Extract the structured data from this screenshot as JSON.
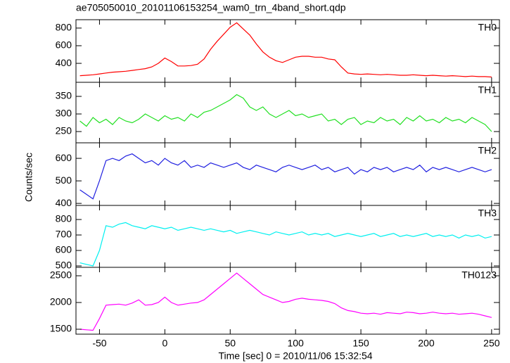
{
  "chart_data": {
    "type": "line",
    "title": "ae705050010_20101106153254_wam0_trn_4band_short.qdp",
    "x_label": "Time [sec] 0 = 2010/11/06 15:32:54",
    "y_label": "Counts/sec",
    "x": [
      -65,
      -60,
      -55,
      -50,
      -45,
      -40,
      -35,
      -30,
      -25,
      -20,
      -15,
      -10,
      -5,
      0,
      5,
      10,
      15,
      20,
      25,
      30,
      35,
      40,
      45,
      50,
      55,
      60,
      65,
      70,
      75,
      80,
      85,
      90,
      95,
      100,
      105,
      110,
      115,
      120,
      125,
      130,
      135,
      140,
      145,
      150,
      155,
      160,
      165,
      170,
      175,
      180,
      185,
      190,
      195,
      200,
      205,
      210,
      215,
      220,
      225,
      230,
      235,
      240,
      245,
      250
    ],
    "xlim": [
      -68,
      256
    ],
    "xticks": [
      -50,
      0,
      50,
      100,
      150,
      200,
      250
    ],
    "series": [
      {
        "name": "TH0",
        "color": "#ff0000",
        "ylim": [
          185,
          895
        ],
        "yticks": [
          400,
          600,
          800
        ],
        "values": [
          260,
          265,
          270,
          280,
          290,
          300,
          305,
          310,
          320,
          330,
          340,
          360,
          400,
          460,
          420,
          370,
          370,
          375,
          390,
          450,
          560,
          650,
          730,
          810,
          860,
          790,
          720,
          620,
          530,
          470,
          430,
          410,
          440,
          470,
          480,
          480,
          470,
          470,
          450,
          440,
          360,
          290,
          280,
          275,
          280,
          275,
          270,
          275,
          270,
          265,
          265,
          270,
          265,
          260,
          265,
          260,
          255,
          260,
          255,
          250,
          255,
          250,
          250,
          245
        ]
      },
      {
        "name": "TH1",
        "color": "#22e022",
        "ylim": [
          218,
          390
        ],
        "yticks": [
          250,
          300,
          350
        ],
        "values": [
          280,
          265,
          290,
          275,
          285,
          270,
          290,
          280,
          275,
          285,
          300,
          290,
          280,
          295,
          285,
          290,
          280,
          300,
          290,
          305,
          310,
          320,
          330,
          340,
          355,
          345,
          320,
          310,
          320,
          300,
          290,
          300,
          310,
          295,
          300,
          290,
          295,
          300,
          280,
          285,
          270,
          285,
          290,
          270,
          280,
          275,
          290,
          280,
          285,
          270,
          290,
          280,
          295,
          280,
          285,
          275,
          290,
          280,
          285,
          275,
          290,
          280,
          270,
          250
        ]
      },
      {
        "name": "TH2",
        "color": "#2020e0",
        "ylim": [
          391,
          669
        ],
        "yticks": [
          400,
          500,
          600
        ],
        "values": [
          460,
          440,
          420,
          500,
          590,
          600,
          590,
          610,
          620,
          600,
          580,
          590,
          570,
          600,
          580,
          570,
          590,
          560,
          570,
          560,
          580,
          570,
          560,
          570,
          580,
          560,
          550,
          570,
          560,
          550,
          540,
          560,
          570,
          560,
          550,
          560,
          570,
          550,
          560,
          540,
          550,
          560,
          530,
          550,
          540,
          560,
          550,
          560,
          540,
          550,
          560,
          550,
          570,
          540,
          560,
          550,
          560,
          550,
          540,
          550,
          560,
          550,
          540,
          550
        ]
      },
      {
        "name": "TH3",
        "color": "#00f0f0",
        "ylim": [
          491,
          891
        ],
        "yticks": [
          500,
          600,
          700,
          800
        ],
        "values": [
          520,
          510,
          500,
          600,
          760,
          750,
          770,
          780,
          760,
          750,
          740,
          760,
          750,
          740,
          750,
          730,
          740,
          750,
          740,
          730,
          740,
          730,
          720,
          730,
          710,
          720,
          730,
          720,
          710,
          700,
          720,
          710,
          700,
          710,
          720,
          700,
          710,
          700,
          710,
          690,
          700,
          710,
          700,
          690,
          700,
          710,
          690,
          700,
          710,
          690,
          700,
          690,
          700,
          710,
          690,
          700,
          690,
          700,
          680,
          700,
          690,
          700,
          680,
          690
        ]
      },
      {
        "name": "TH0123",
        "color": "#ff00ff",
        "ylim": [
          1408,
          2658
        ],
        "yticks": [
          1500,
          2000,
          2500
        ],
        "values": [
          1500,
          1490,
          1480,
          1700,
          1950,
          1960,
          1970,
          1950,
          1990,
          2050,
          1950,
          1960,
          2000,
          2100,
          2000,
          1950,
          1970,
          1990,
          2000,
          2050,
          2150,
          2250,
          2350,
          2450,
          2550,
          2450,
          2350,
          2250,
          2150,
          2100,
          2050,
          2000,
          2020,
          2060,
          2080,
          2060,
          2050,
          2040,
          2020,
          1980,
          1900,
          1850,
          1830,
          1800,
          1790,
          1800,
          1780,
          1810,
          1800,
          1790,
          1820,
          1810,
          1790,
          1800,
          1820,
          1800,
          1790,
          1800,
          1780,
          1790,
          1800,
          1780,
          1750,
          1720
        ]
      }
    ]
  }
}
